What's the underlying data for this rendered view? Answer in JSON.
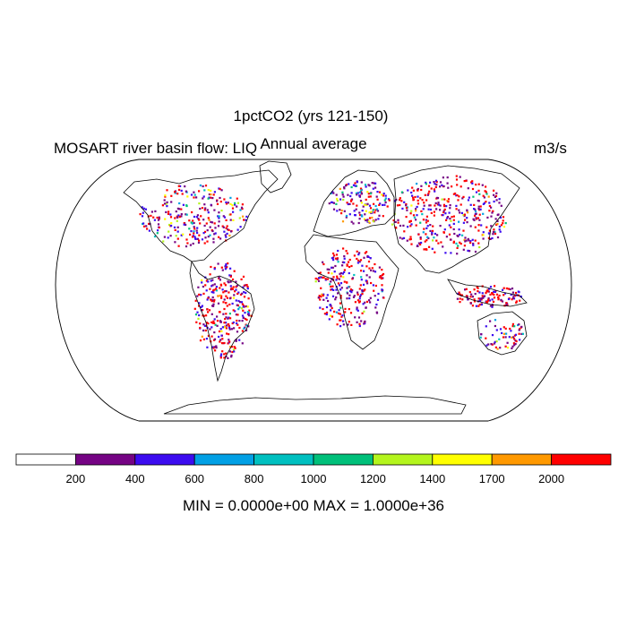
{
  "title": "1pctCO2 (yrs 121-150)",
  "subtitle": "Annual average",
  "left_title": "MOSART river basin flow: LIQ",
  "units": "m3/s",
  "stats": "MIN = 0.0000e+00 MAX = 1.0000e+36",
  "colorbar": {
    "colors": [
      "#ffffff",
      "#750384",
      "#3c0cf0",
      "#01a0e5",
      "#00c0c0",
      "#00c07a",
      "#b4f51d",
      "#ffff00",
      "#ff9900",
      "#ff0000"
    ],
    "labels": [
      "200",
      "400",
      "600",
      "800",
      "1000",
      "1200",
      "1400",
      "1700",
      "2000"
    ]
  },
  "chart_data": {
    "type": "heatmap",
    "projection": "Robinson",
    "field": "river basin flow",
    "levels": [
      200,
      400,
      600,
      800,
      1000,
      1200,
      1400,
      1700,
      2000
    ]
  }
}
